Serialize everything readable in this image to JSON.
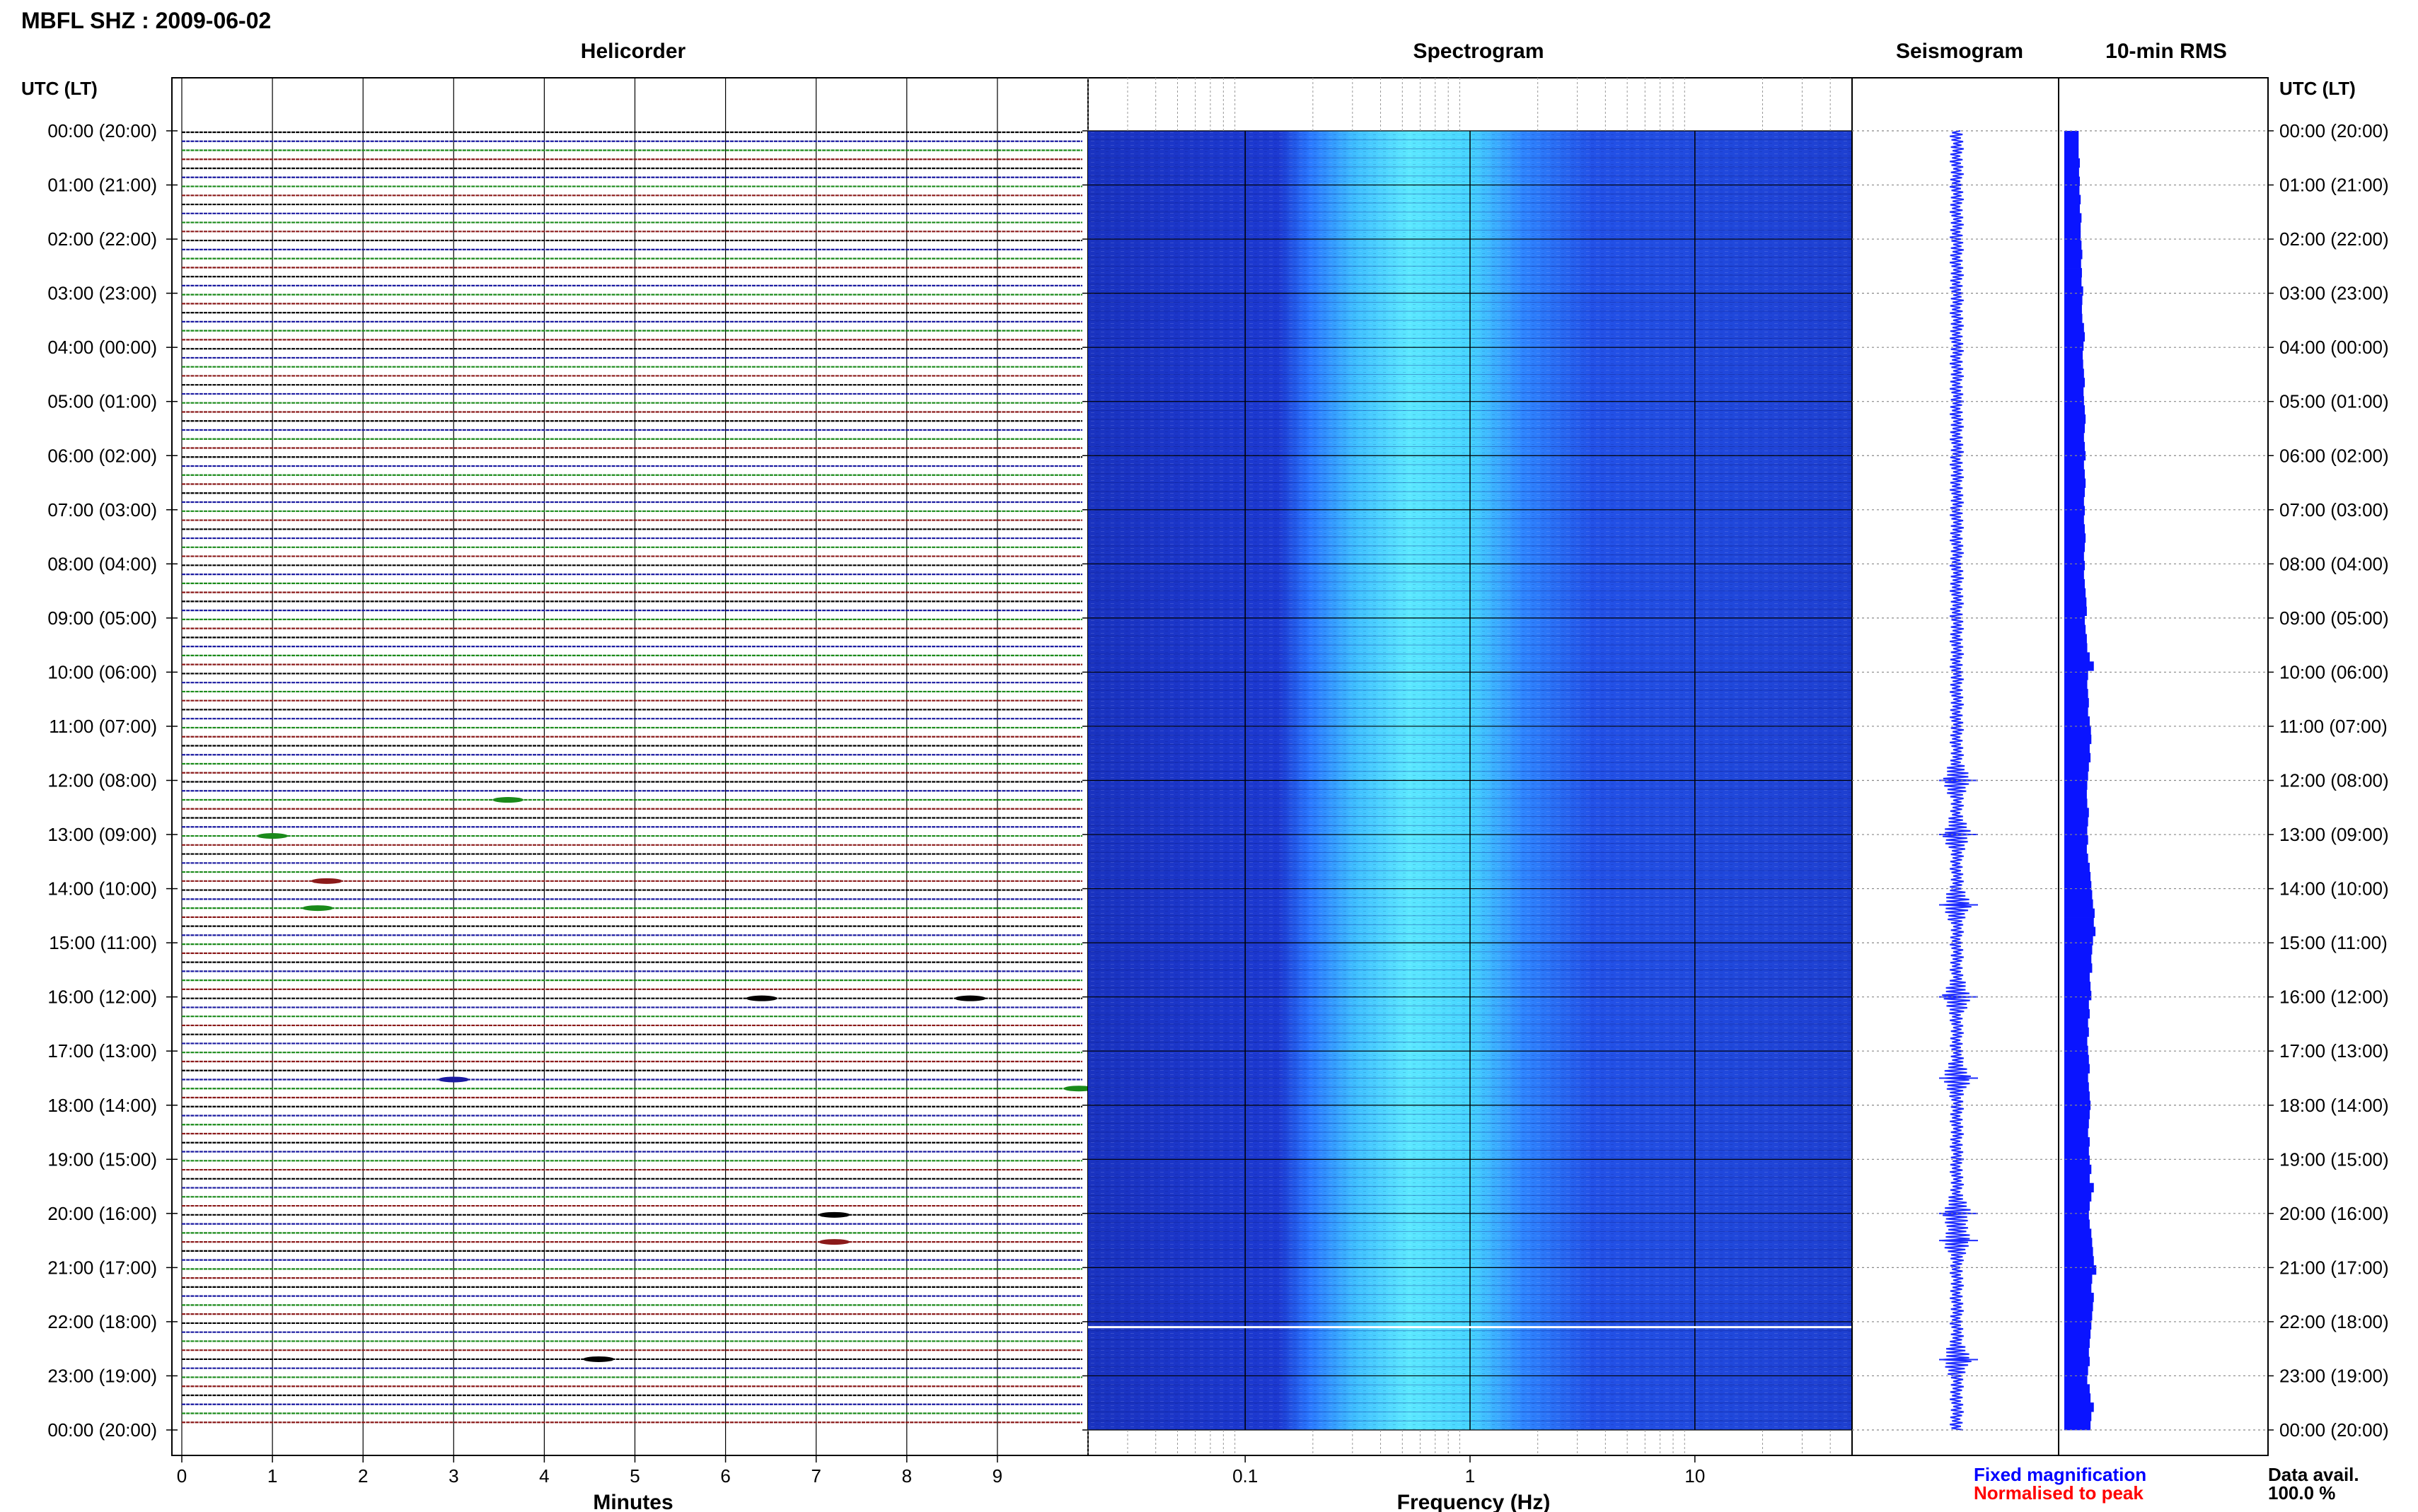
{
  "title": "MBFL SHZ : 2009-06-02",
  "panels": {
    "helicorder": "Helicorder",
    "spectrogram": "Spectrogram",
    "seismogram": "Seismogram",
    "rms": "10-min RMS"
  },
  "time_axis_label": "UTC (LT)",
  "time_labels": [
    "00:00 (20:00)",
    "01:00 (21:00)",
    "02:00 (22:00)",
    "03:00 (23:00)",
    "04:00 (00:00)",
    "05:00 (01:00)",
    "06:00 (02:00)",
    "07:00 (03:00)",
    "08:00 (04:00)",
    "09:00 (05:00)",
    "10:00 (06:00)",
    "11:00 (07:00)",
    "12:00 (08:00)",
    "13:00 (09:00)",
    "14:00 (10:00)",
    "15:00 (11:00)",
    "16:00 (12:00)",
    "17:00 (13:00)",
    "18:00 (14:00)",
    "19:00 (15:00)",
    "20:00 (16:00)",
    "21:00 (17:00)",
    "22:00 (18:00)",
    "23:00 (19:00)",
    "00:00 (20:00)"
  ],
  "x_axes": {
    "minutes": {
      "label": "Minutes",
      "ticks": [
        "0",
        "1",
        "2",
        "3",
        "4",
        "5",
        "6",
        "7",
        "8",
        "9"
      ]
    },
    "frequency": {
      "label": "Frequency (Hz)",
      "ticks": [
        "0.1",
        "1",
        "10"
      ]
    }
  },
  "legend": {
    "fixed": {
      "text": "Fixed magnification",
      "color": "#0000ff"
    },
    "normalised": {
      "text": "Normalised to peak",
      "color": "#ff0000"
    }
  },
  "data_avail": {
    "label": "Data avail.",
    "value": "100.0 %"
  },
  "colors": {
    "trace_cycle": [
      "#000000",
      "#1a1aa0",
      "#1a8a1a",
      "#8b1a1a"
    ],
    "spectrogram_low": "#1f36c8",
    "spectrogram_mid": "#33b6ff",
    "spectrogram_peak": "#6ff0ff",
    "rms_bar": "#0a14ff",
    "seismogram": "#1e2cff"
  },
  "chart_data": [
    {
      "type": "line",
      "title": "Helicorder",
      "xlabel": "Minutes",
      "xlim": [
        0,
        10
      ],
      "ylim": [
        0,
        24
      ],
      "lines_per_hour": 6,
      "events": [
        {
          "hour": 12.4,
          "minute": 3.6
        },
        {
          "hour": 13.0,
          "minute": 1.0
        },
        {
          "hour": 13.9,
          "minute": 1.6
        },
        {
          "hour": 14.3,
          "minute": 1.5
        },
        {
          "hour": 16.0,
          "minute": 6.4
        },
        {
          "hour": 16.0,
          "minute": 8.7
        },
        {
          "hour": 17.5,
          "minute": 3.0
        },
        {
          "hour": 17.6,
          "minute": 9.9
        },
        {
          "hour": 20.0,
          "minute": 7.2
        },
        {
          "hour": 20.5,
          "minute": 7.2
        },
        {
          "hour": 22.7,
          "minute": 4.6
        }
      ]
    },
    {
      "type": "heatmap",
      "title": "Spectrogram",
      "xlabel": "Frequency (Hz)",
      "xscale": "log",
      "xlim": [
        0.02,
        50
      ],
      "ylim": [
        0,
        24
      ],
      "energy_band_hz": [
        0.25,
        2.0
      ],
      "peak_hz": 0.6
    },
    {
      "type": "line",
      "title": "Seismogram",
      "ylim": [
        0,
        24
      ],
      "active_hours": [
        12.0,
        13.0,
        14.3,
        16.0,
        17.5,
        20.0,
        20.5,
        22.7
      ]
    },
    {
      "type": "bar",
      "title": "10-min RMS",
      "ylim": [
        0,
        24
      ],
      "values_relative": [
        0.35,
        0.35,
        0.35,
        0.38,
        0.36,
        0.38,
        0.37,
        0.4,
        0.38,
        0.42,
        0.4,
        0.4,
        0.42,
        0.44,
        0.41,
        0.43,
        0.42,
        0.46,
        0.44,
        0.43,
        0.44,
        0.48,
        0.5,
        0.47,
        0.45,
        0.46,
        0.48,
        0.5,
        0.47,
        0.48,
        0.5,
        0.52,
        0.5,
        0.48,
        0.5,
        0.52,
        0.48,
        0.5,
        0.52,
        0.5,
        0.48,
        0.5,
        0.48,
        0.5,
        0.52,
        0.5,
        0.48,
        0.5,
        0.48,
        0.5,
        0.52,
        0.54,
        0.55,
        0.5,
        0.52,
        0.55,
        0.56,
        0.62,
        0.72,
        0.58,
        0.56,
        0.58,
        0.6,
        0.58,
        0.62,
        0.65,
        0.66,
        0.62,
        0.64,
        0.6,
        0.58,
        0.56,
        0.55,
        0.56,
        0.6,
        0.58,
        0.56,
        0.58,
        0.55,
        0.58,
        0.62,
        0.64,
        0.66,
        0.68,
        0.7,
        0.74,
        0.72,
        0.76,
        0.7,
        0.68,
        0.66,
        0.68,
        0.62,
        0.64,
        0.66,
        0.6,
        0.62,
        0.58,
        0.6,
        0.56,
        0.58,
        0.6,
        0.62,
        0.58,
        0.6,
        0.62,
        0.64,
        0.62,
        0.6,
        0.58,
        0.62,
        0.6,
        0.62,
        0.66,
        0.62,
        0.72,
        0.66,
        0.62,
        0.6,
        0.62,
        0.66,
        0.68,
        0.7,
        0.72,
        0.78,
        0.68,
        0.66,
        0.72,
        0.7,
        0.68,
        0.66,
        0.64,
        0.62,
        0.6,
        0.62,
        0.58,
        0.56,
        0.62,
        0.64,
        0.72,
        0.66,
        0.64
      ]
    }
  ]
}
